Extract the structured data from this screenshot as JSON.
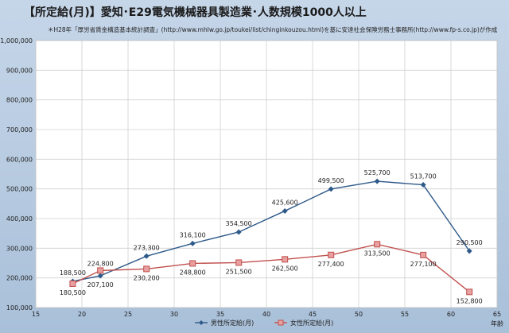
{
  "chart_data": {
    "type": "line",
    "title": "【所定給(月)】愛知･E29電気機械器具製造業･人数規模1000人以上",
    "subtitle": "＊H28年「厚労省賃金構造基本統計調査」(http://www.mhlw.go.jp/toukei/list/chinginkouzou.html)を基に安達社会保険労務士事務所(http://www.fp-s.co.jp)が作成",
    "xlabel": "年齢",
    "ylabel": "",
    "xlim": [
      15,
      65
    ],
    "ylim": [
      100000,
      1000000
    ],
    "x_ticks": [
      "15",
      "20",
      "25",
      "30",
      "35",
      "40",
      "45",
      "50",
      "55",
      "60",
      "65"
    ],
    "y_ticks": [
      "100,000",
      "200,000",
      "300,000",
      "400,000",
      "500,000",
      "600,000",
      "700,000",
      "800,000",
      "900,000",
      "1,000,000"
    ],
    "grid": true,
    "legend": "bottom",
    "x": [
      19,
      22,
      27,
      32,
      37,
      42,
      47,
      52,
      57,
      62
    ],
    "series": [
      {
        "name": "男性所定給(月)",
        "color": "#2e5a8a",
        "marker": "diamond",
        "values": [
          188500,
          207100,
          273300,
          316100,
          354500,
          425600,
          499500,
          525700,
          513700,
          290500
        ],
        "labels": [
          "188,500",
          "207,100",
          "273,300",
          "316,100",
          "354,500",
          "425,600",
          "499,500",
          "525,700",
          "513,700",
          "290,500"
        ]
      },
      {
        "name": "女性所定給(月)",
        "color": "#c0504d",
        "marker": "square",
        "values": [
          180500,
          224800,
          230200,
          248800,
          251500,
          262500,
          277400,
          313500,
          277100,
          152800
        ],
        "labels": [
          "180,500",
          "224,800",
          "230,200",
          "248,800",
          "251,500",
          "262,500",
          "277,400",
          "313,500",
          "277,100",
          "152,800"
        ]
      }
    ]
  }
}
